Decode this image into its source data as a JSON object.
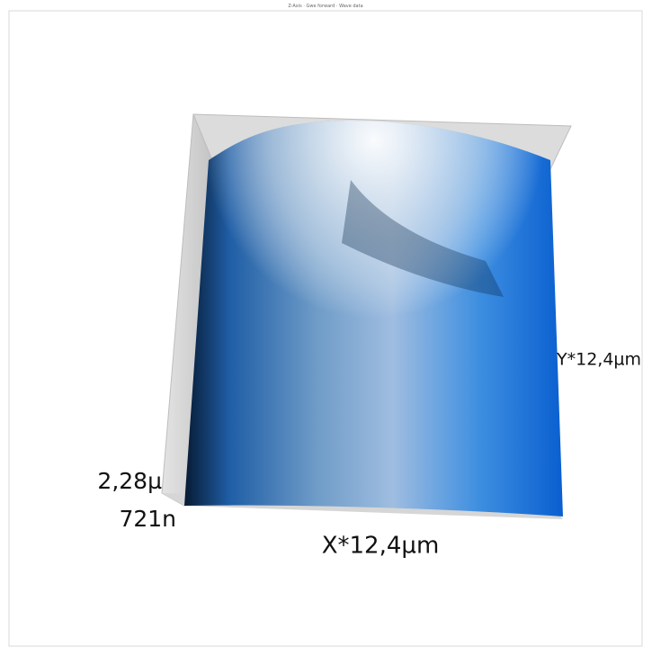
{
  "window": {
    "title": "Z-Axis · Gwe forward · Wave data"
  },
  "labels": {
    "z_max": "2,28µ",
    "z_min": "721n",
    "x_axis": "X*12,4µm",
    "y_axis": "Y*12,4µm"
  }
}
